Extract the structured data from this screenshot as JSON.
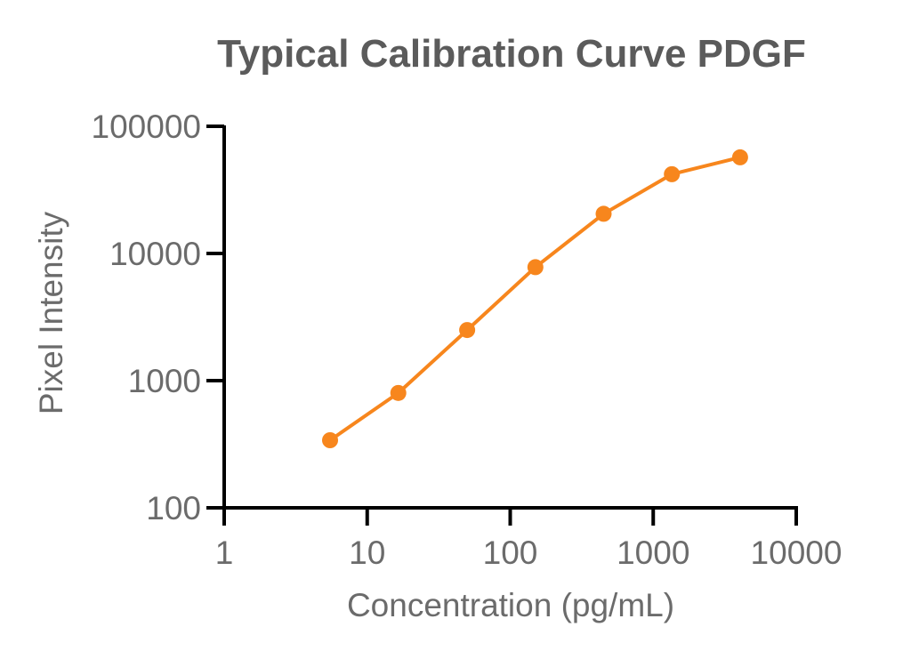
{
  "chart_data": {
    "type": "line",
    "title": "Typical Calibration Curve PDGF",
    "xlabel": "Concentration (pg/mL)",
    "ylabel": "Pixel Intensity",
    "xscale": "log",
    "yscale": "log",
    "xlim": [
      1,
      10000
    ],
    "ylim": [
      100,
      100000
    ],
    "x_ticks": [
      "1",
      "10",
      "100",
      "1000",
      "10000"
    ],
    "y_ticks": [
      "100",
      "1000",
      "10000",
      "100000"
    ],
    "grid": false,
    "legend": "none",
    "series": [
      {
        "color": "#f7861d",
        "markers": "filled-circle",
        "x": [
          5.5,
          16.5,
          50,
          150,
          450,
          1350,
          4050
        ],
        "y": [
          340,
          800,
          2500,
          7800,
          20500,
          42000,
          57000
        ]
      }
    ]
  }
}
